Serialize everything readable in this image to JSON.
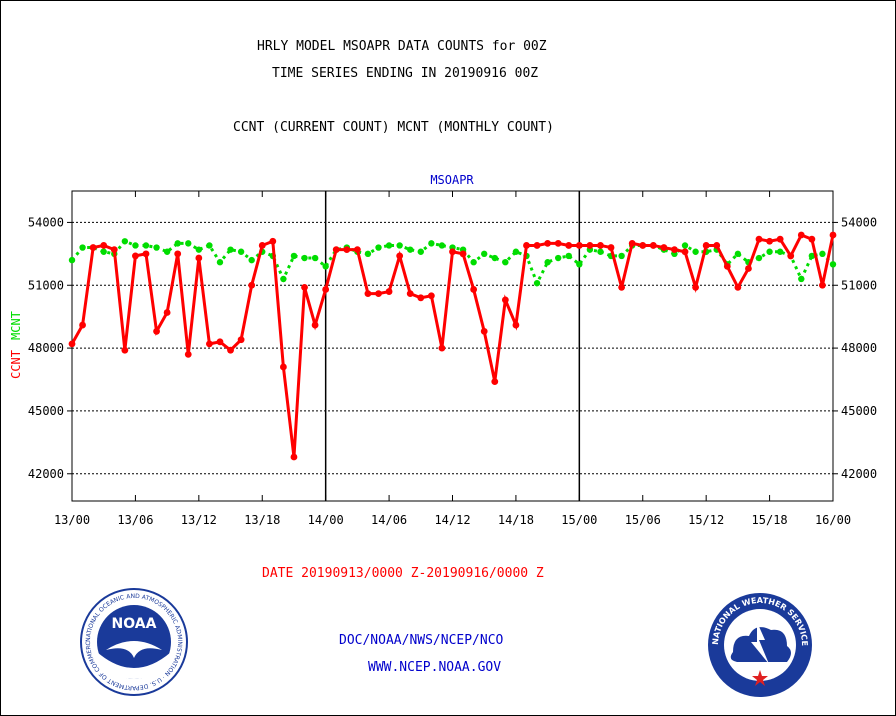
{
  "header": {
    "title1": "HRLY MODEL MSOAPR DATA COUNTS for 00Z",
    "title2": "TIME SERIES ENDING IN 20190916 00Z",
    "title3": "CCNT (CURRENT COUNT) MCNT (MONTHLY COUNT)"
  },
  "footer": {
    "date_range": "DATE 20190913/0000 Z-20190916/0000 Z",
    "org": "DOC/NOAA/NWS/NCEP/NCO",
    "url": "WWW.NCEP.NOAA.GOV"
  },
  "logos": {
    "noaa_text": "NOAA",
    "noaa_ring": "NATIONAL OCEANIC AND ATMOSPHERIC ADMINISTRATION · U.S. DEPARTMENT OF COMMERCE",
    "nws_ring": "NATIONAL WEATHER SERVICE"
  },
  "colors": {
    "ccnt": "#ff0000",
    "mcnt": "#00dd00",
    "title": "#0000cc",
    "date": "#ff0000",
    "footer": "#0000cc"
  },
  "chart_data": {
    "type": "line",
    "title": "MSOAPR",
    "ylabel_left_parts": [
      "CCNT",
      "MCNT"
    ],
    "ylim": [
      40700,
      55500
    ],
    "yticks": [
      42000,
      45000,
      48000,
      51000,
      54000
    ],
    "ytick_labels": [
      "42000",
      "45000",
      "48000",
      "51000",
      "54000"
    ],
    "xlim": [
      0,
      72
    ],
    "xticks": [
      0,
      6,
      12,
      18,
      24,
      30,
      36,
      42,
      48,
      54,
      60,
      66,
      72
    ],
    "xtick_labels": [
      "13/00",
      "13/06",
      "13/12",
      "13/18",
      "14/00",
      "14/06",
      "14/12",
      "14/18",
      "15/00",
      "15/06",
      "15/12",
      "15/18",
      "16/00"
    ],
    "day_dividers": [
      24,
      48
    ],
    "grid": true,
    "x": [
      0,
      1,
      2,
      3,
      4,
      5,
      6,
      7,
      8,
      9,
      10,
      11,
      12,
      13,
      14,
      15,
      16,
      17,
      18,
      19,
      20,
      21,
      22,
      23,
      24,
      25,
      26,
      27,
      28,
      29,
      30,
      31,
      32,
      33,
      34,
      35,
      36,
      37,
      38,
      39,
      40,
      41,
      42,
      43,
      44,
      45,
      46,
      47,
      48,
      49,
      50,
      51,
      52,
      53,
      54,
      55,
      56,
      57,
      58,
      59,
      60,
      61,
      62,
      63,
      64,
      65,
      66,
      67,
      68,
      69,
      70,
      71,
      72
    ],
    "series": [
      {
        "name": "CCNT",
        "values": [
          48200,
          49100,
          52800,
          52900,
          52700,
          47900,
          52400,
          52500,
          48800,
          49700,
          52500,
          47700,
          52300,
          48200,
          48300,
          47900,
          48400,
          51000,
          52900,
          53100,
          47100,
          42800,
          50900,
          49100,
          50800,
          52700,
          52700,
          52700,
          50600,
          50600,
          50700,
          52400,
          50600,
          50400,
          50500,
          48000,
          52600,
          52500,
          50800,
          48800,
          46400,
          50300,
          49100,
          52900,
          52900,
          53000,
          53000,
          52900,
          52900,
          52900,
          52900,
          52800,
          50900,
          53000,
          52900,
          52900,
          52800,
          52700,
          52600,
          50900,
          52900,
          52900,
          51900,
          50900,
          51800,
          53200,
          53100,
          53200,
          52400,
          53400,
          53200,
          51000,
          53400
        ]
      },
      {
        "name": "MCNT",
        "values": [
          52200,
          52800,
          52800,
          52600,
          52500,
          53100,
          52900,
          52900,
          52800,
          52600,
          53000,
          53000,
          52700,
          52900,
          52100,
          52700,
          52600,
          52200,
          52600,
          52400,
          51300,
          52400,
          52300,
          52300,
          51900,
          52700,
          52800,
          52600,
          52500,
          52800,
          52900,
          52900,
          52700,
          52600,
          53000,
          52900,
          52800,
          52700,
          52100,
          52500,
          52300,
          52100,
          52600,
          52400,
          51100,
          52100,
          52300,
          52400,
          52000,
          52700,
          52600,
          52400,
          52400,
          52900,
          52900,
          52900,
          52700,
          52500,
          52900,
          52600,
          52600,
          52700,
          52000,
          52500,
          52100,
          52300,
          52600,
          52600,
          52400,
          51300,
          52400,
          52500,
          52000
        ]
      }
    ]
  }
}
